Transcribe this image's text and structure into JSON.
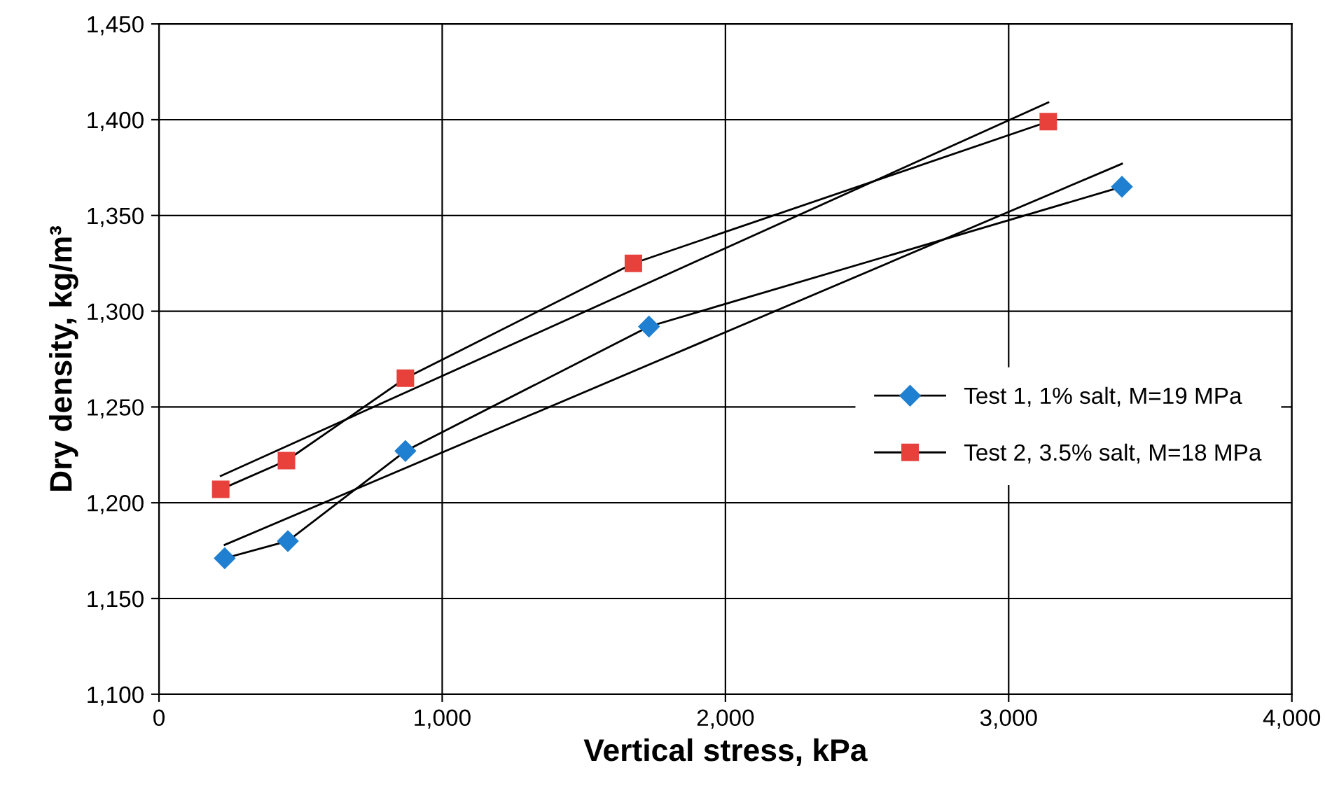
{
  "chart_data": {
    "type": "line",
    "xlabel": "Vertical stress, kPa",
    "ylabel": "Dry density, kg/m³",
    "xlim": [
      0,
      4000
    ],
    "ylim": [
      1100,
      1450
    ],
    "xticks": [
      0,
      {
        "value": 1000,
        "label": "1,000"
      },
      {
        "value": 2000,
        "label": "2,000"
      },
      {
        "value": 3000,
        "label": "3,000"
      },
      {
        "value": 4000,
        "label": "4,000"
      }
    ],
    "yticks": [
      {
        "value": 1100,
        "label": "1,100"
      },
      {
        "value": 1150,
        "label": "1,150"
      },
      {
        "value": 1200,
        "label": "1,200"
      },
      {
        "value": 1250,
        "label": "1,250"
      },
      {
        "value": 1300,
        "label": "1,300"
      },
      {
        "value": 1350,
        "label": "1,350"
      },
      {
        "value": 1400,
        "label": "1,400"
      },
      {
        "value": 1450,
        "label": "1,450"
      }
    ],
    "grid": true,
    "legend": "right",
    "series": [
      {
        "name": "Test 1, 1% salt, M=19 MPa",
        "color": "#1f7fd0",
        "marker": "diamond",
        "x": [
          232,
          455,
          870,
          1730,
          3400
        ],
        "values": [
          1171,
          1180,
          1227,
          1292,
          1365
        ]
      },
      {
        "name": "Test 2, 3.5% salt, M=18 MPa",
        "color": "#e8413c",
        "marker": "square",
        "x": [
          218,
          450,
          870,
          1675,
          3140
        ],
        "values": [
          1207,
          1222,
          1265,
          1325,
          1399
        ]
      },
      {
        "type": "line",
        "color": "#000000",
        "marker": "none",
        "x": [
          232,
          3400
        ],
        "values": [
          1178,
          1377
        ]
      },
      {
        "type": "line",
        "color": "#000000",
        "marker": "none",
        "x": [
          218,
          3140
        ],
        "values": [
          1214,
          1409
        ]
      }
    ]
  }
}
